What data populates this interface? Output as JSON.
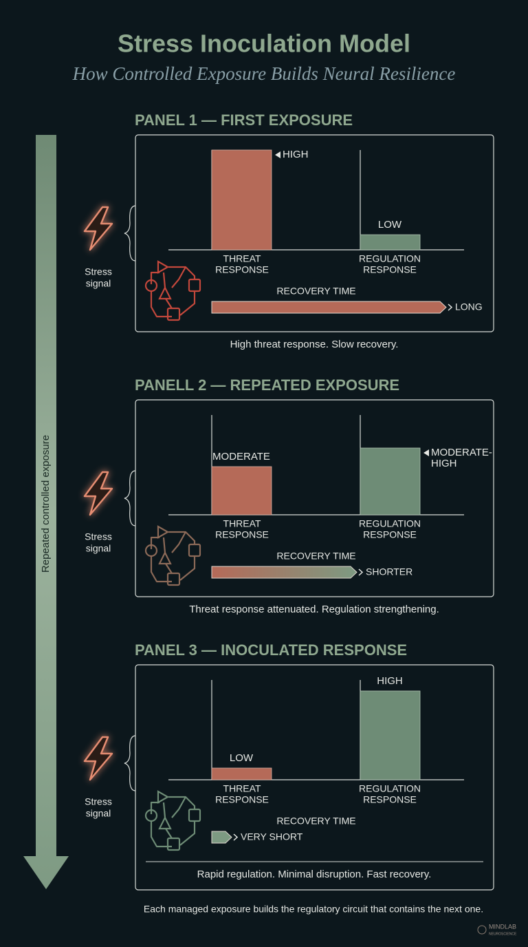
{
  "title": "Stress Inoculation Model",
  "subtitle": "How Controlled Exposure Builds Neural Resilience",
  "side_label": "Repeated controlled exposure",
  "panels": [
    {
      "heading": "PANEL 1 — FIRST EXPOSURE",
      "stress_signal": [
        "Stress",
        "signal"
      ],
      "threat_level": [
        "HIGH"
      ],
      "regulation_level": [
        "LOW"
      ],
      "threat_label": [
        "THREAT",
        "RESPONSE"
      ],
      "regulation_label": [
        "REGULATION",
        "RESPONSE"
      ],
      "recovery_label": "RECOVERY TIME",
      "recovery_level": "LONG",
      "caption": "High threat response. Slow recovery."
    },
    {
      "heading": "PANELL 2 — REPEATED EXPOSURE",
      "stress_signal": [
        "Stress",
        "signal"
      ],
      "threat_level": [
        "MODERATE"
      ],
      "regulation_level": [
        "MODERATE-",
        "HIGH"
      ],
      "threat_label": [
        "THREAT",
        "RESPONSE"
      ],
      "regulation_label": [
        "REGULATION",
        "RESPONSE"
      ],
      "recovery_label": "RECOVERY TIME",
      "recovery_level": "SHORTER",
      "caption": "Threat response attenuated. Regulation strengthening."
    },
    {
      "heading": "PANEL 3 — INOCULATED RESPONSE",
      "stress_signal": [
        "Stress",
        "signal"
      ],
      "threat_level": [
        "LOW"
      ],
      "regulation_level": [
        "HIGH"
      ],
      "threat_label": [
        "THREAT",
        "RESPONSE"
      ],
      "regulation_label": [
        "REGULATION",
        "RESPONSE"
      ],
      "recovery_label": "RECOVERY TIME",
      "recovery_level": "VERY SHORT",
      "caption": "Rapid regulation. Minimal disruption. Fast recovery."
    }
  ],
  "footer": "Each managed exposure builds the regulatory circuit that contains the next one.",
  "logo": [
    "MINDLAB",
    "NEUROSCIENCE"
  ]
}
